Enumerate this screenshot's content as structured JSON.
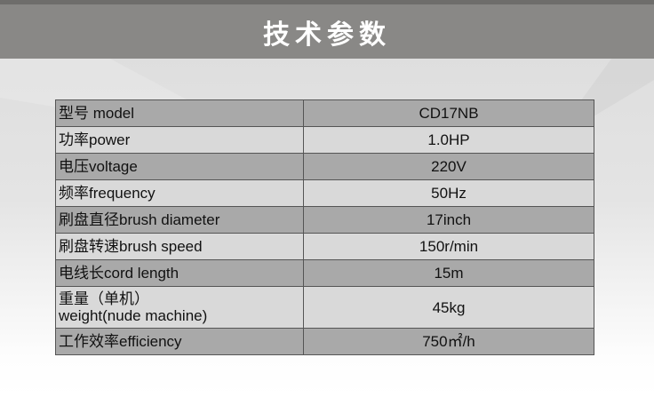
{
  "header": {
    "title": "技术参数"
  },
  "specs": [
    {
      "label": "型号 model",
      "value": "CD17NB"
    },
    {
      "label": "功率power",
      "value": "1.0HP"
    },
    {
      "label": "电压voltage",
      "value": "220V"
    },
    {
      "label": "频率frequency",
      "value": "50Hz"
    },
    {
      "label": "刷盘直径brush diameter",
      "value": "17inch"
    },
    {
      "label": "刷盘转速brush speed",
      "value": "150r/min"
    },
    {
      "label": "电线长cord length",
      "value": "15m"
    },
    {
      "label": "重量（单机）",
      "label2": "weight(nude machine)",
      "value": "45kg"
    },
    {
      "label": "工作效率efficiency",
      "value": "750㎡/h"
    }
  ]
}
